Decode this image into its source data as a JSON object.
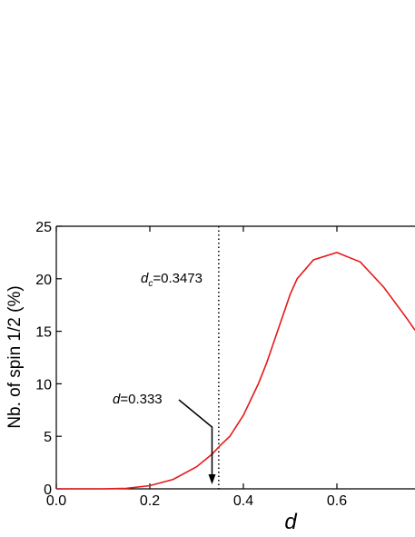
{
  "chart_data": {
    "type": "line",
    "x_label": "d",
    "y_label": "Nb. of spin 1/2 (%)",
    "xlim": [
      0,
      0.767
    ],
    "ylim": [
      0,
      25
    ],
    "xticks": [
      {
        "value": 0,
        "label": "0.0"
      },
      {
        "value": 0.2,
        "label": "0.2"
      },
      {
        "value": 0.4,
        "label": "0.4"
      },
      {
        "value": 0.6,
        "label": "0.6"
      }
    ],
    "yticks": [
      0,
      5,
      10,
      15,
      20,
      25
    ],
    "series": [
      {
        "color": "#e41a1a",
        "x": [
          0,
          0.1,
          0.15,
          0.2,
          0.25,
          0.3,
          0.333,
          0.35,
          0.371,
          0.4,
          0.432,
          0.45,
          0.5,
          0.515,
          0.55,
          0.6,
          0.65,
          0.7,
          0.75,
          0.767
        ],
        "values": [
          0,
          0,
          0.05,
          0.3,
          0.9,
          2.1,
          3.3,
          4.1,
          5,
          7,
          10,
          12,
          18.5,
          20,
          21.8,
          22.5,
          21.6,
          19.2,
          16.2,
          15.1
        ]
      }
    ],
    "critical_line": {
      "x": 0.3473,
      "label_var": "d",
      "label_sub": "c",
      "label_rest": "=0.3473"
    },
    "arrow": {
      "x": 0.333,
      "label_var": "d",
      "label_rest": "=0.333"
    }
  }
}
